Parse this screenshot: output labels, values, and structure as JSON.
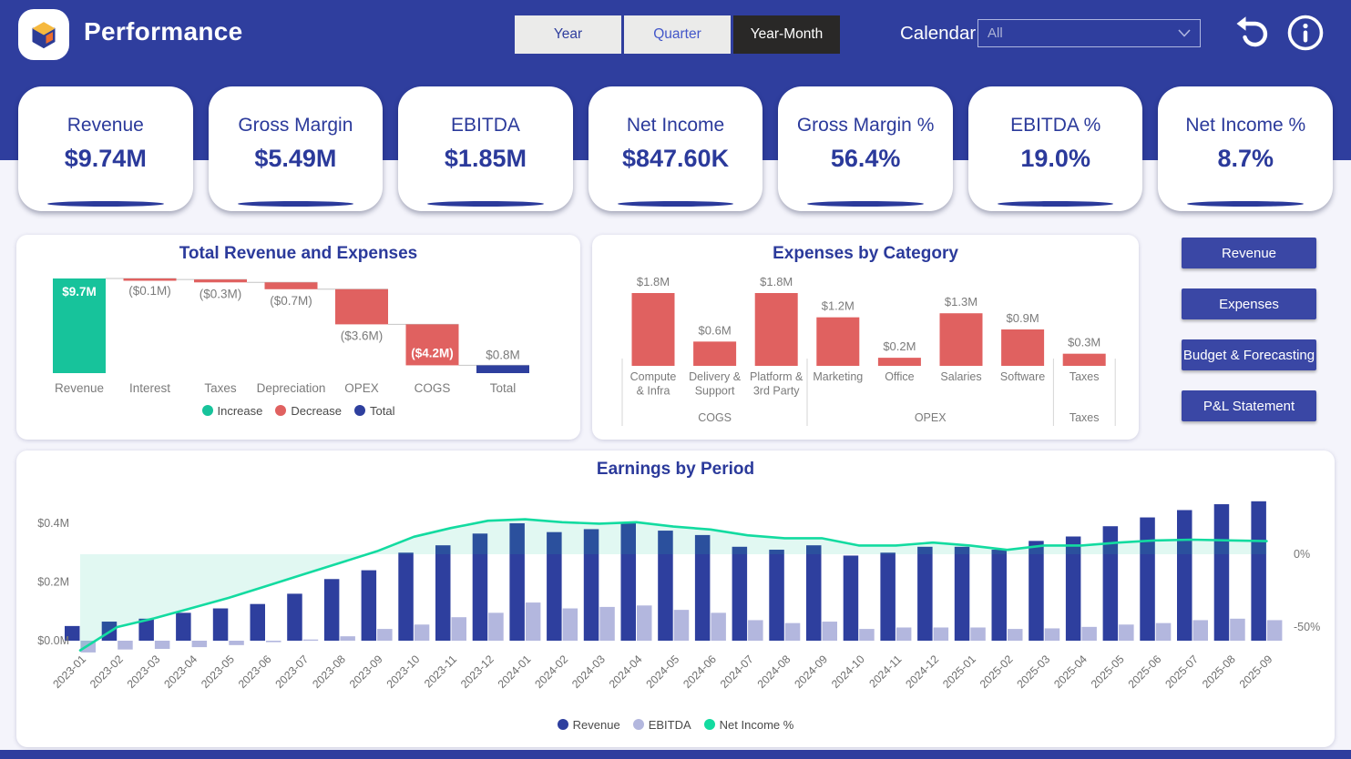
{
  "header": {
    "title": "Performance",
    "toggles": [
      {
        "label": "Year",
        "active": false
      },
      {
        "label": "Quarter",
        "active": false
      },
      {
        "label": "Year-Month",
        "active": true
      }
    ],
    "calendar_label": "Calendar",
    "calendar_value": "All"
  },
  "kpis": [
    {
      "label": "Revenue",
      "value": "$9.74M"
    },
    {
      "label": "Gross Margin",
      "value": "$5.49M"
    },
    {
      "label": "EBITDA",
      "value": "$1.85M"
    },
    {
      "label": "Net Income",
      "value": "$847.60K"
    },
    {
      "label": "Gross Margin %",
      "value": "56.4%"
    },
    {
      "label": "EBITDA %",
      "value": "19.0%"
    },
    {
      "label": "Net Income %",
      "value": "8.7%"
    }
  ],
  "nav_buttons": [
    "Revenue",
    "Expenses",
    "Budget & Forecasting",
    "P&L Statement"
  ],
  "colors": {
    "accent": "#2F3E9E",
    "kpi_text": "#2B3A9B",
    "increase": "#17C39B",
    "decrease": "#E06160",
    "total_bar": "#2E3F9E",
    "ebitda_bar": "#B3B7DE",
    "line_green": "#13DBA0"
  },
  "chart_data": [
    {
      "type": "waterfall",
      "title": "Total Revenue and Expenses",
      "categories": [
        "Revenue",
        "Interest",
        "Taxes",
        "Depreciation",
        "OPEX",
        "COGS",
        "Total"
      ],
      "values": [
        9.7,
        -0.1,
        -0.3,
        -0.7,
        -3.6,
        -4.2,
        0.8
      ],
      "labels": [
        "$9.7M",
        "($0.1M)",
        "($0.3M)",
        "($0.7M)",
        "($3.6M)",
        "($4.2M)",
        "$0.8M"
      ],
      "kinds": [
        "increase",
        "decrease",
        "decrease",
        "decrease",
        "decrease",
        "decrease",
        "total"
      ],
      "label_pos": [
        "inside-top",
        "below",
        "below",
        "below",
        "below",
        "inside-bottom",
        "above"
      ],
      "colors": {
        "increase": "#17C39B",
        "decrease": "#E06160",
        "total": "#2E3F9E"
      },
      "legend": [
        {
          "label": "Increase",
          "color": "#17C39B"
        },
        {
          "label": "Decrease",
          "color": "#E06160"
        },
        {
          "label": "Total",
          "color": "#2E3F9E"
        }
      ],
      "ylim": [
        0,
        9.7
      ]
    },
    {
      "type": "bar",
      "title": "Expenses by Category",
      "categories": [
        [
          "Compute",
          "& Infra"
        ],
        [
          "Delivery &",
          "Support"
        ],
        [
          "Platform &",
          "3rd Party"
        ],
        [
          "Marketing"
        ],
        [
          "Office"
        ],
        [
          "Salaries"
        ],
        [
          "Software"
        ],
        [
          "Taxes"
        ]
      ],
      "values": [
        1.8,
        0.6,
        1.8,
        1.2,
        0.2,
        1.3,
        0.9,
        0.3
      ],
      "labels": [
        "$1.8M",
        "$0.6M",
        "$1.8M",
        "$1.2M",
        "$0.2M",
        "$1.3M",
        "$0.9M",
        "$0.3M"
      ],
      "groups": [
        {
          "label": "COGS",
          "from": 0,
          "to": 2
        },
        {
          "label": "OPEX",
          "from": 3,
          "to": 6
        },
        {
          "label": "Taxes",
          "from": 7,
          "to": 7
        }
      ],
      "bar_color": "#E06160",
      "ylim": [
        0,
        1.8
      ]
    },
    {
      "type": "combo",
      "title": "Earnings by Period",
      "categories": [
        "2023-01",
        "2023-02",
        "2023-03",
        "2023-04",
        "2023-05",
        "2023-06",
        "2023-07",
        "2023-08",
        "2023-09",
        "2023-10",
        "2023-11",
        "2023-12",
        "2024-01",
        "2024-02",
        "2024-03",
        "2024-04",
        "2024-05",
        "2024-06",
        "2024-07",
        "2024-08",
        "2024-09",
        "2024-10",
        "2024-11",
        "2024-12",
        "2025-01",
        "2025-02",
        "2025-03",
        "2025-04",
        "2025-05",
        "2025-06",
        "2025-07",
        "2025-08",
        "2025-09"
      ],
      "series": [
        {
          "name": "Revenue",
          "type": "bar",
          "axis": "left",
          "color": "#2E3F9E",
          "values": [
            0.05,
            0.065,
            0.075,
            0.095,
            0.11,
            0.125,
            0.16,
            0.21,
            0.24,
            0.3,
            0.325,
            0.365,
            0.4,
            0.37,
            0.38,
            0.4,
            0.375,
            0.36,
            0.32,
            0.31,
            0.325,
            0.29,
            0.3,
            0.32,
            0.32,
            0.31,
            0.34,
            0.355,
            0.39,
            0.42,
            0.445,
            0.465,
            0.475
          ]
        },
        {
          "name": "EBITDA",
          "type": "bar",
          "axis": "left",
          "color": "#B3B7DE",
          "values": [
            -0.04,
            -0.03,
            -0.028,
            -0.022,
            -0.015,
            -0.005,
            0.004,
            0.015,
            0.04,
            0.055,
            0.08,
            0.095,
            0.13,
            0.11,
            0.115,
            0.12,
            0.105,
            0.095,
            0.07,
            0.06,
            0.065,
            0.04,
            0.045,
            0.045,
            0.045,
            0.04,
            0.042,
            0.047,
            0.055,
            0.06,
            0.07,
            0.075,
            0.07
          ]
        },
        {
          "name": "Net Income %",
          "type": "line",
          "axis": "right",
          "color": "#13DBA0",
          "area_fill": "#18C89B",
          "values": [
            -66,
            -50,
            -44,
            -37,
            -30,
            -22,
            -14,
            -6,
            2,
            12,
            18,
            23,
            24,
            22,
            21,
            22,
            19,
            17,
            13,
            11,
            11,
            6,
            6,
            8,
            6,
            3,
            6,
            6,
            8,
            9.5,
            10,
            9.5,
            9
          ]
        }
      ],
      "left_axis": {
        "ticks": [
          "$0.0M",
          "$0.2M",
          "$0.4M"
        ],
        "tick_values": [
          0,
          0.2,
          0.4
        ],
        "range": [
          0,
          0.4
        ]
      },
      "right_axis": {
        "ticks": [
          "0%",
          "-50%"
        ],
        "tick_values": [
          0,
          -50
        ],
        "range": [
          -50,
          0
        ]
      },
      "legend_position": "bottom-center",
      "grid": false
    }
  ]
}
